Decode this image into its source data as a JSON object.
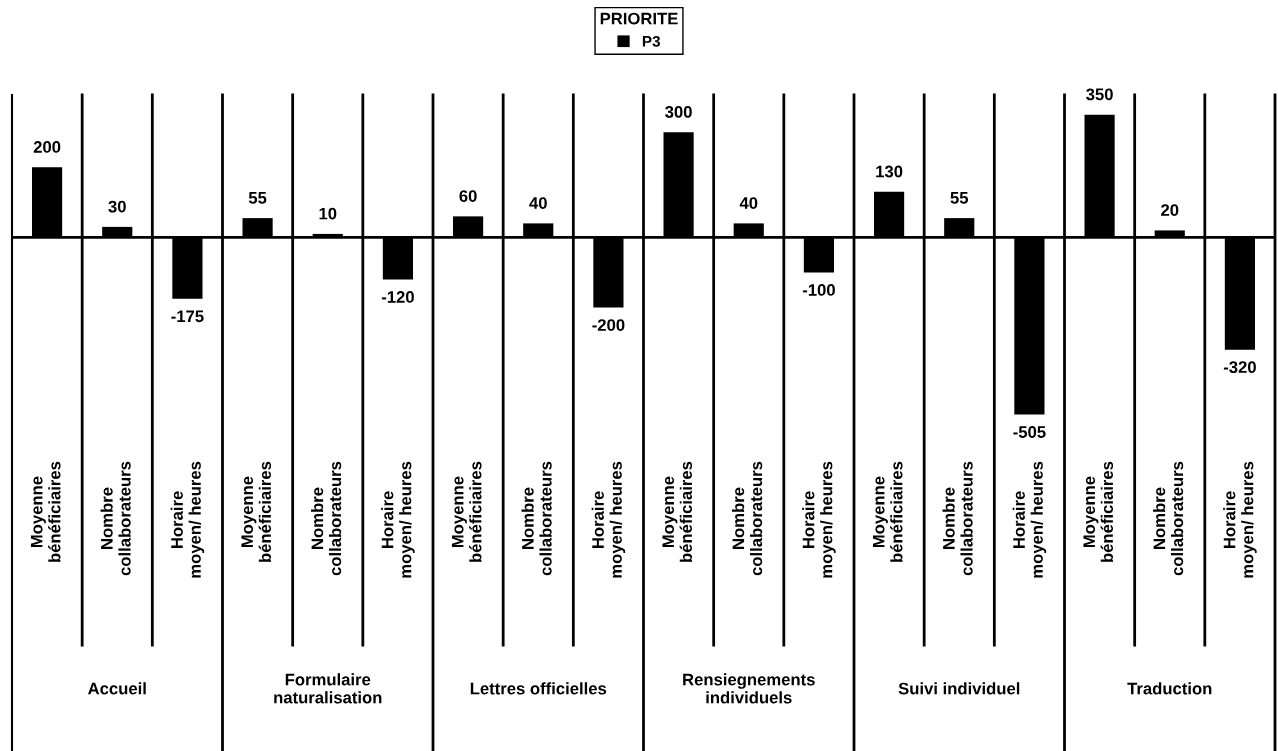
{
  "chart_data": {
    "type": "bar",
    "legend_title": "PRIORITE",
    "legend": "top",
    "tick_labels": "x",
    "data_labels": true,
    "grid": false,
    "categories": [
      "Moyenne\nbénéficiaires",
      "Nombre\ncollaborateurs",
      "Horaire\nmoyen/ heures",
      "Moyenne\nbénéficiaires",
      "Nombre\ncollaborateurs",
      "Horaire\nmoyen/ heures",
      "Moyenne\nbénéficiaires",
      "Nombre\ncollaborateurs",
      "Horaire\nmoyen/ heures",
      "Moyenne\nbénéficiaires",
      "Nombre\ncollaborateurs",
      "Horaire\nmoyen/ heures",
      "Moyenne\nbénéficiaires",
      "Nombre\ncollaborateurs",
      "Horaire\nmoyen/ heures",
      "Moyenne\nbénéficiaires",
      "Nombre\ncollaborateurs",
      "Horaire\nmoyen/ heures"
    ],
    "series": [
      {
        "name": "P3",
        "color": "#000000",
        "values": [
          200,
          30,
          -175,
          55,
          10,
          -120,
          60,
          40,
          -200,
          300,
          40,
          -100,
          130,
          55,
          -505,
          350,
          20,
          -320
        ]
      }
    ],
    "annotations": [
      "Accueil",
      "Formulaire\nnaturalisation",
      "Lettres officielles",
      "Rensiegnements\nindividuels",
      "Suivi individuel",
      "Traduction"
    ]
  }
}
